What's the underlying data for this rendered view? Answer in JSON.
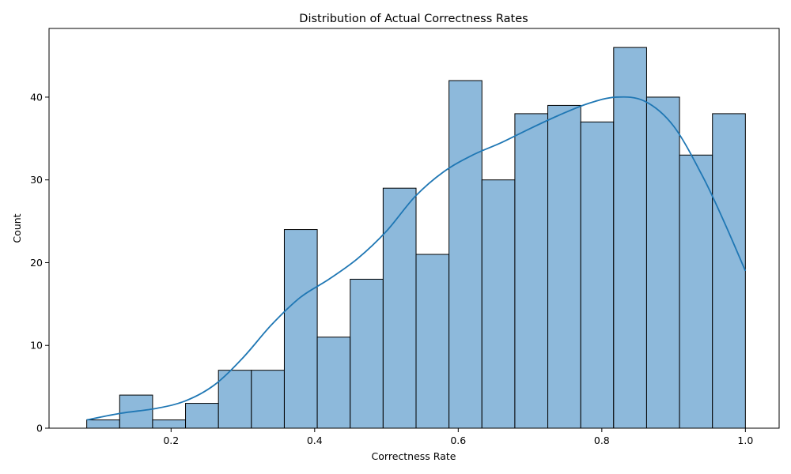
{
  "chart_data": {
    "type": "bar",
    "title": "Distribution of Actual Correctness Rates",
    "xlabel": "Correctness Rate",
    "ylabel": "Count",
    "xlim": [
      0.03,
      1.047
    ],
    "ylim": [
      0,
      48.3
    ],
    "x_ticks": [
      0.2,
      0.4,
      0.6,
      0.8,
      1.0
    ],
    "x_tick_labels": [
      "0.2",
      "0.4",
      "0.6",
      "0.8",
      "1.0"
    ],
    "y_ticks": [
      0,
      10,
      20,
      30,
      40
    ],
    "y_tick_labels": [
      "0",
      "10",
      "20",
      "30",
      "40"
    ],
    "bins": {
      "start": 0.0825,
      "end": 1.0,
      "counts": [
        1,
        4,
        1,
        3,
        7,
        7,
        24,
        11,
        18,
        29,
        21,
        42,
        30,
        38,
        39,
        37,
        46,
        40,
        33,
        38
      ]
    },
    "kde": {
      "x": [
        0.0825,
        0.13,
        0.18,
        0.22,
        0.26,
        0.3,
        0.34,
        0.38,
        0.42,
        0.46,
        0.5,
        0.54,
        0.58,
        0.62,
        0.66,
        0.7,
        0.74,
        0.78,
        0.82,
        0.86,
        0.9,
        0.94,
        0.97,
        1.0
      ],
      "y": [
        1.0,
        1.8,
        2.4,
        3.3,
        5.2,
        8.5,
        12.5,
        15.8,
        18.0,
        20.5,
        23.8,
        28.0,
        31.0,
        33.0,
        34.5,
        36.2,
        37.8,
        39.2,
        40.0,
        39.5,
        36.5,
        30.5,
        25.0,
        19.0
      ]
    },
    "grid": false,
    "colors": {
      "bar_fill": "#8db9db",
      "bar_edge": "#000000",
      "kde_line": "#1f77b4"
    }
  }
}
